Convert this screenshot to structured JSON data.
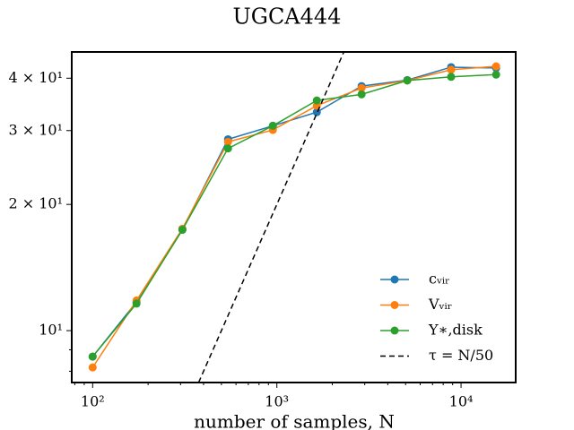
{
  "chart_data": {
    "type": "line",
    "title": "UGCA444",
    "xlabel": "number of samples, N",
    "xscale": "log",
    "yscale": "log",
    "xlim": [
      77,
      19800
    ],
    "ylim": [
      7.52,
      46.2
    ],
    "xticks": [
      {
        "value": 100,
        "label": "10²"
      },
      {
        "value": 1000,
        "label": "10³"
      },
      {
        "value": 10000,
        "label": "10⁴"
      }
    ],
    "xminorticks": [
      80,
      90,
      200,
      300,
      400,
      500,
      600,
      700,
      800,
      900,
      2000,
      3000,
      4000,
      5000,
      6000,
      7000,
      8000,
      9000
    ],
    "yticks": [
      {
        "value": 10,
        "label": "10¹"
      },
      {
        "value": 20,
        "label": "2 × 10¹"
      },
      {
        "value": 30,
        "label": "3 × 10¹"
      },
      {
        "value": 40,
        "label": "4 × 10¹"
      }
    ],
    "yminorticks": [
      8,
      9
    ],
    "x": [
      100,
      173,
      307,
      543,
      951,
      1648,
      2884,
      5106,
      8831,
      15500
    ],
    "series": [
      {
        "name": "cᵥᵢᵣ",
        "color": "#1f77b4",
        "marker": true,
        "values": [
          8.67,
          11.7,
          17.4,
          28.6,
          30.8,
          33.2,
          38.3,
          39.6,
          42.5,
          42.3
        ]
      },
      {
        "name": "Vᵥᵢᵣ",
        "color": "#ff7f0e",
        "marker": true,
        "values": [
          8.17,
          11.8,
          17.5,
          28.2,
          30.1,
          34.4,
          37.9,
          39.5,
          41.9,
          42.7
        ]
      },
      {
        "name": "Υ∗,disk",
        "color": "#2ca02c",
        "marker": true,
        "values": [
          8.67,
          11.6,
          17.4,
          27.2,
          30.8,
          35.4,
          36.6,
          39.5,
          40.3,
          40.8
        ]
      },
      {
        "name": "τ = N/50",
        "color": "#000000",
        "dashed": true,
        "x": [
          376,
          2310
        ],
        "values": [
          7.52,
          46.2
        ]
      }
    ],
    "legend": "lower right"
  }
}
